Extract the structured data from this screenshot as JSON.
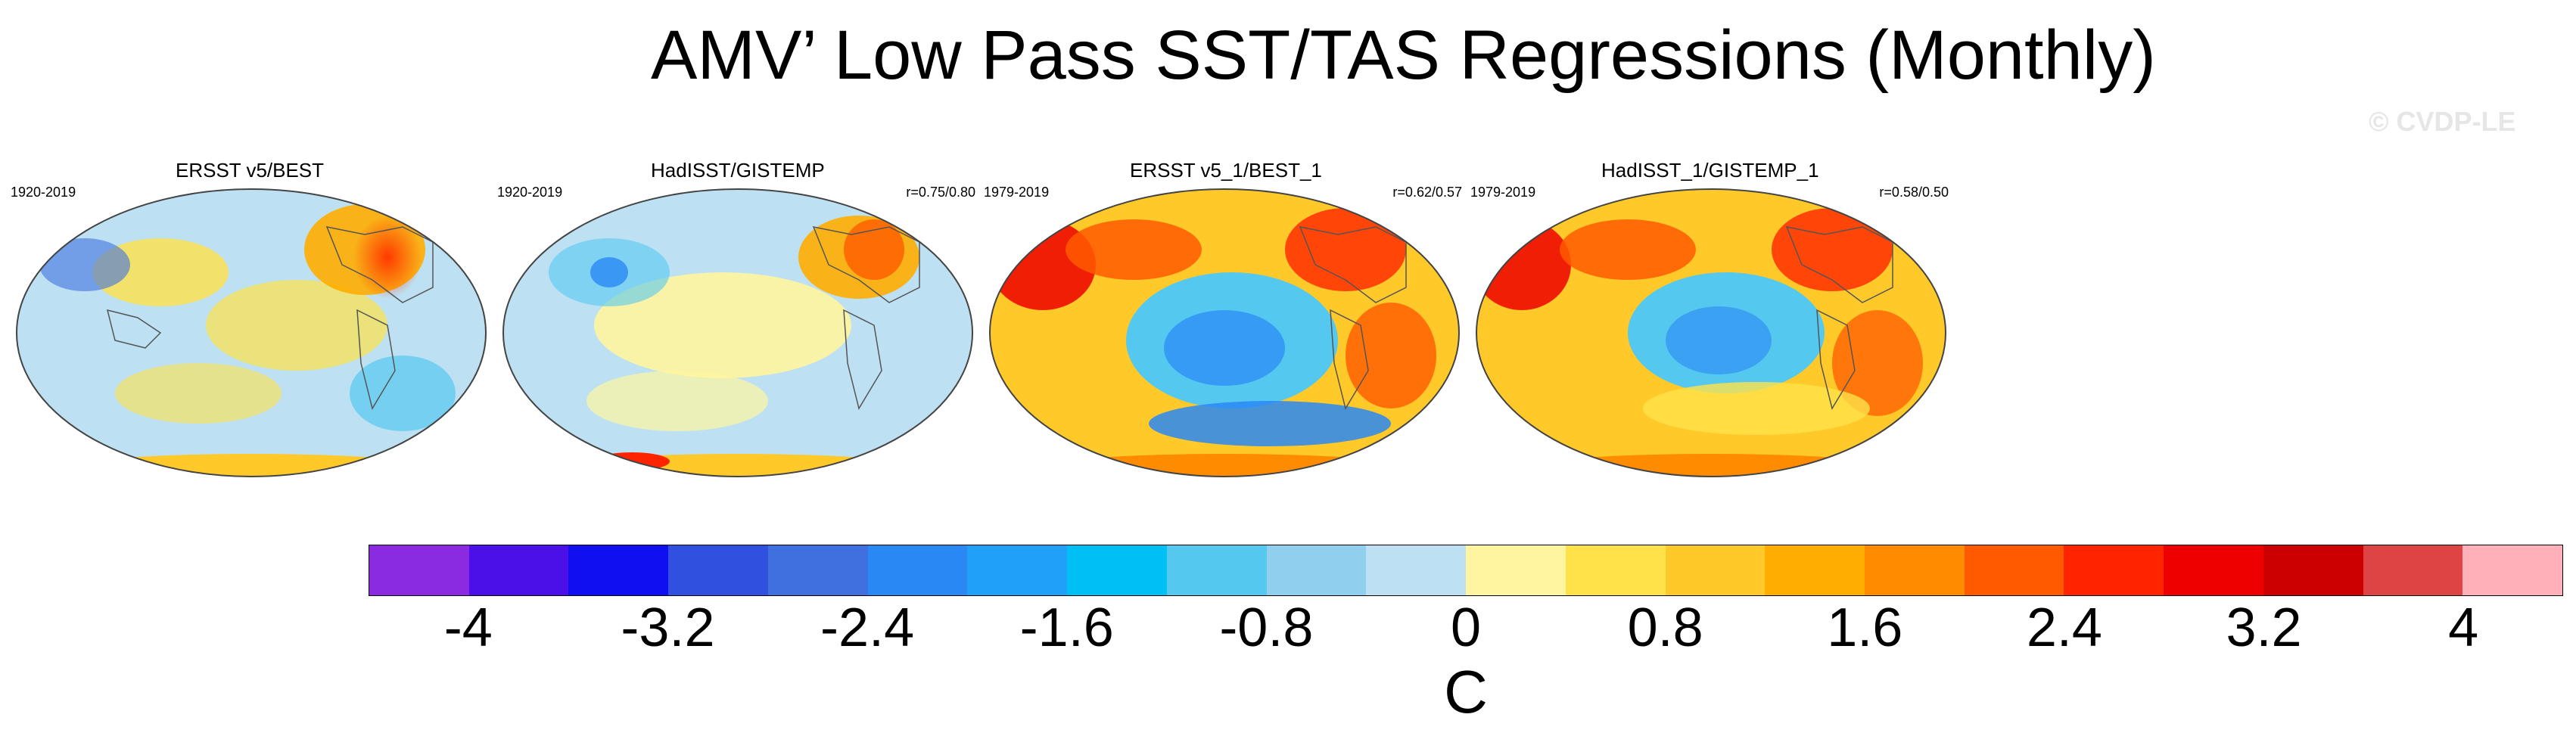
{
  "title": "AMV’ Low Pass SST/TAS Regressions (Monthly)",
  "watermark": "© CVDP-LE",
  "panels": [
    {
      "label": "ERSST v5/BEST",
      "years": "1920-2019",
      "correlation": "",
      "pattern": "warm-north-atlantic-mild"
    },
    {
      "label": "HadISST/GISTEMP",
      "years": "1920-2019",
      "correlation": "r=0.75/0.80",
      "pattern": "warm-north-atlantic-mild"
    },
    {
      "label": "ERSST v5_1/BEST_1",
      "years": "1979-2019",
      "correlation": "r=0.62/0.57",
      "pattern": "strong-warm-continents"
    },
    {
      "label": "HadISST_1/GISTEMP_1",
      "years": "1979-2019",
      "correlation": "r=0.58/0.50",
      "pattern": "strong-warm-continents"
    }
  ],
  "colorbar": {
    "unit": "C",
    "ticks": [
      "-4",
      "-3.2",
      "-2.4",
      "-1.6",
      "-0.8",
      "0",
      "0.8",
      "1.6",
      "2.4",
      "3.2",
      "4"
    ],
    "colors": [
      "#8a2be2",
      "#4b0fe8",
      "#0f0ff0",
      "#3050e0",
      "#4070e0",
      "#2a88f5",
      "#20a0f8",
      "#00bff5",
      "#55c8f0",
      "#90d0ee",
      "#bde1f2",
      "#fff5a0",
      "#ffe24a",
      "#ffc929",
      "#ffad00",
      "#ff8c00",
      "#ff5a00",
      "#ff2400",
      "#ee0000",
      "#cc0000",
      "#dd4444",
      "#ffb0b8"
    ]
  }
}
